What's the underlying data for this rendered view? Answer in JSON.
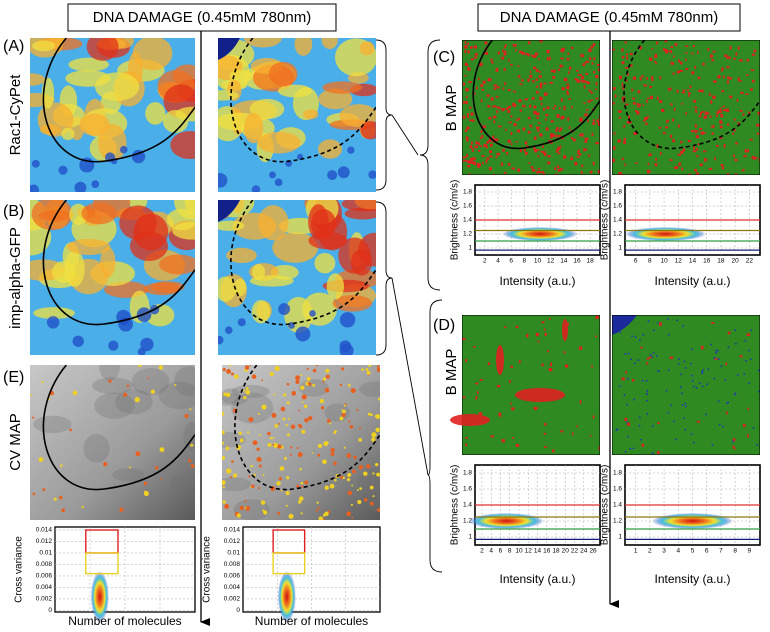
{
  "left_header": "DNA DAMAGE (0.45mM 780nm)",
  "right_header": "DNA DAMAGE (0.45mM 780nm)",
  "panels": {
    "A": {
      "label": "(A)",
      "row_label": "Rac1-CyPet"
    },
    "B": {
      "label": "(B)",
      "row_label": "imp-alpha-GFP"
    },
    "E": {
      "label": "(E)",
      "row_label": "CV MAP"
    },
    "C": {
      "label": "(C)",
      "row_label": "B MAP"
    },
    "D": {
      "label": "(D)",
      "row_label": "B MAP"
    }
  },
  "cv_plots": [
    {
      "y_label": "Cross variance",
      "x_label": "Number of molecules",
      "yticks": [
        0.014,
        0.012,
        0.01,
        0.008,
        0.006,
        0.004,
        0.002,
        0
      ]
    },
    {
      "y_label": "Cross variance",
      "x_label": "Number of molecules",
      "yticks": [
        0.014,
        0.012,
        0.01,
        0.008,
        0.006,
        0.004,
        0.002,
        0
      ]
    }
  ],
  "brightness_plots": [
    {
      "y_label": "Brightness (c/m/s)",
      "x_label": "Intensity (a.u.)",
      "yticks": [
        1,
        1.2,
        1.4,
        1.6,
        1.8
      ],
      "xticks": [
        2,
        4,
        6,
        8,
        10,
        12,
        14,
        16,
        18
      ]
    },
    {
      "y_label": "Brightness (c/m/s)",
      "x_label": "Intensity (a.u.)",
      "yticks": [
        1,
        1.2,
        1.4,
        1.6,
        1.8
      ],
      "xticks": [
        6,
        8,
        10,
        12,
        14,
        16,
        18,
        20,
        22
      ]
    },
    {
      "y_label": "Brightness (c/m/s)",
      "x_label": "Intensity (a.u.)",
      "yticks": [
        1,
        1.2,
        1.4,
        1.6,
        1.8
      ],
      "xticks": [
        2,
        4,
        6,
        8,
        10,
        12,
        14,
        16,
        18,
        20,
        22,
        24,
        26
      ]
    },
    {
      "y_label": "Brightness (c/m/s)",
      "x_label": "Intensity (a.u.)",
      "yticks": [
        1,
        1.2,
        1.4,
        1.6,
        1.8
      ],
      "xticks": [
        1,
        2,
        3,
        4,
        5,
        6,
        7,
        8,
        9
      ]
    }
  ]
}
